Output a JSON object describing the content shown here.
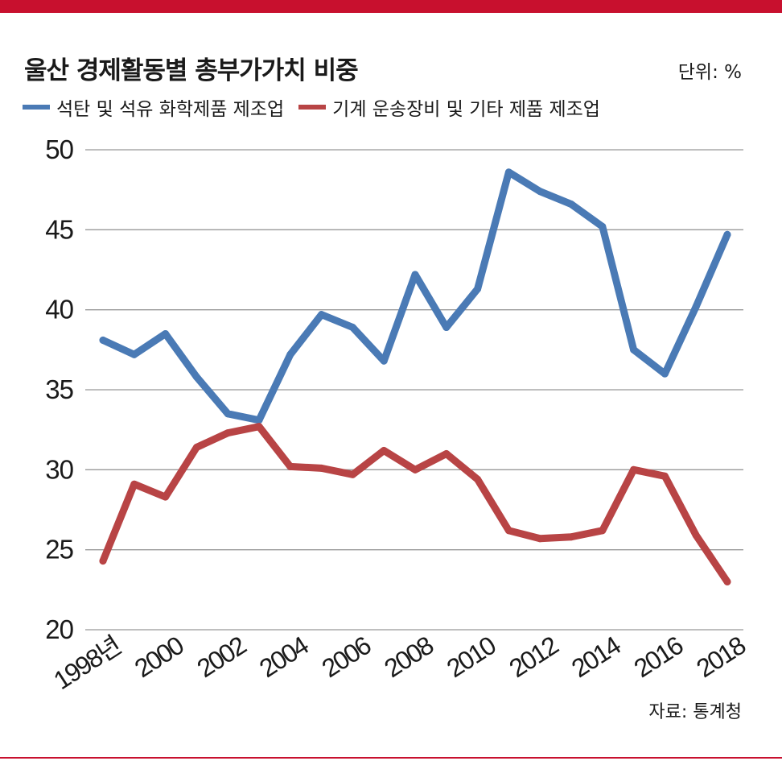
{
  "title": "울산 경제활동별 총부가가치 비중",
  "unit_label": "단위: %",
  "source": "자료: 통계청",
  "colors": {
    "accent_bar": "#c8102e",
    "grid": "#999999"
  },
  "chart_data": {
    "type": "line",
    "x": [
      1998,
      1999,
      2000,
      2001,
      2002,
      2003,
      2004,
      2005,
      2006,
      2007,
      2008,
      2009,
      2010,
      2011,
      2012,
      2013,
      2014,
      2015,
      2016,
      2017,
      2018
    ],
    "x_tick_values": [
      1998,
      2000,
      2002,
      2004,
      2006,
      2008,
      2010,
      2012,
      2014,
      2016,
      2018
    ],
    "x_tick_labels": [
      "1998년",
      "2000",
      "2002",
      "2004",
      "2006",
      "2008",
      "2010",
      "2012",
      "2014",
      "2016",
      "2018"
    ],
    "y_ticks": [
      20,
      25,
      30,
      35,
      40,
      45,
      50
    ],
    "ylim": [
      20,
      50
    ],
    "grid": true,
    "legend_position": "top-left",
    "series": [
      {
        "name": "석탄 및 석유 화학제품 제조업",
        "color": "#4a7ab5",
        "values": [
          38.1,
          37.2,
          38.5,
          35.8,
          33.5,
          33.1,
          37.2,
          39.7,
          38.9,
          36.8,
          42.2,
          38.9,
          41.3,
          48.6,
          47.4,
          46.6,
          45.2,
          37.5,
          36.0,
          40.2,
          44.7
        ]
      },
      {
        "name": "기계 운송장비 및 기타 제품 제조업",
        "color": "#b84445",
        "values": [
          24.3,
          29.1,
          28.3,
          31.4,
          32.3,
          32.7,
          30.2,
          30.1,
          29.7,
          31.2,
          30.0,
          31.0,
          29.4,
          26.2,
          25.7,
          25.8,
          26.2,
          30.0,
          29.6,
          25.9,
          23.0
        ]
      }
    ]
  }
}
